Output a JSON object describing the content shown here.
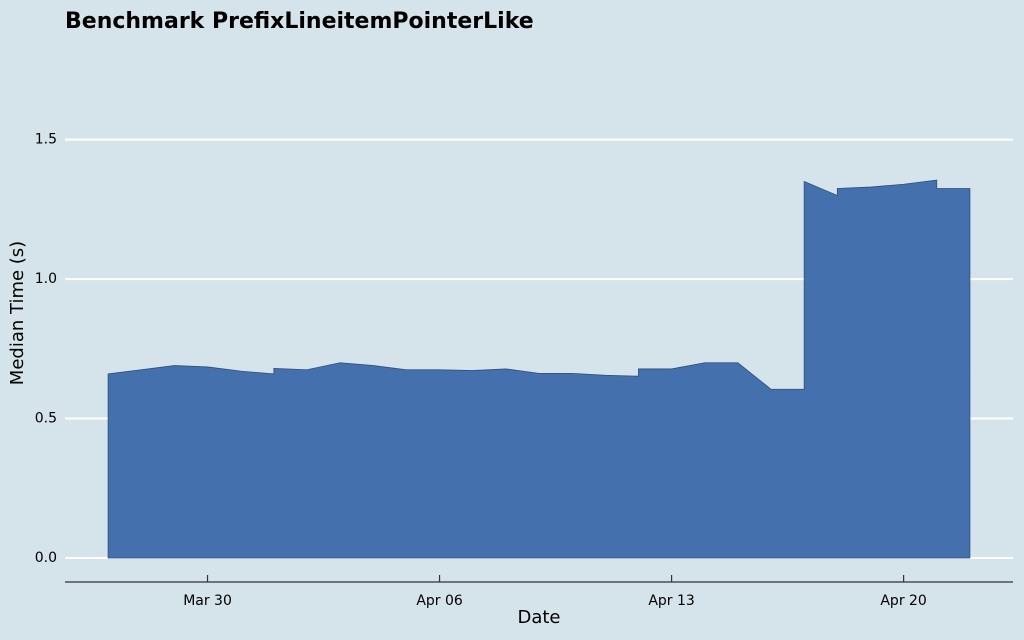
{
  "chart_data": {
    "type": "area",
    "title": "Benchmark PrefixLineitemPointerLike",
    "x_label": "Date",
    "y_label": "Median Time (s)",
    "x": [
      "Mar 27",
      "Mar 28",
      "Mar 29",
      "Mar 30",
      "Mar 31",
      "Apr 01",
      "Apr 01",
      "Apr 02",
      "Apr 03",
      "Apr 04",
      "Apr 05",
      "Apr 06",
      "Apr 07",
      "Apr 08",
      "Apr 09",
      "Apr 10",
      "Apr 11",
      "Apr 12",
      "Apr 12",
      "Apr 13",
      "Apr 14",
      "Apr 15",
      "Apr 16",
      "Apr 17",
      "Apr 17",
      "Apr 18",
      "Apr 18",
      "Apr 19",
      "Apr 20",
      "Apr 21",
      "Apr 21",
      "Apr 22"
    ],
    "values": [
      0.66,
      0.675,
      0.69,
      0.685,
      0.67,
      0.66,
      0.68,
      0.675,
      0.7,
      0.69,
      0.675,
      0.675,
      0.672,
      0.678,
      0.662,
      0.662,
      0.655,
      0.652,
      0.678,
      0.678,
      0.7,
      0.7,
      0.605,
      0.605,
      1.35,
      1.3,
      1.325,
      1.33,
      1.34,
      1.355,
      1.325,
      1.325
    ],
    "color": "#4470ad",
    "ylim": [
      0,
      1.8
    ],
    "yticks": [
      0.0,
      0.5,
      1.0,
      1.5
    ],
    "yticks_labels_note": null,
    "xticks": [
      "Mar 30",
      "Apr 06",
      "Apr 13",
      "Apr 20"
    ],
    "grid": true
  }
}
